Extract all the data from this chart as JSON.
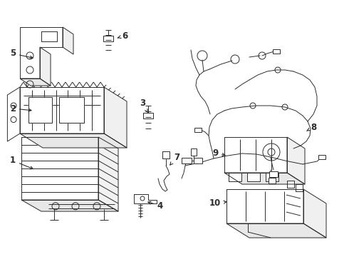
{
  "background_color": "#ffffff",
  "line_color": "#2d2d2d",
  "line_width": 0.7,
  "label_fontsize": 8.5,
  "fig_width": 4.9,
  "fig_height": 3.6,
  "dpi": 100
}
